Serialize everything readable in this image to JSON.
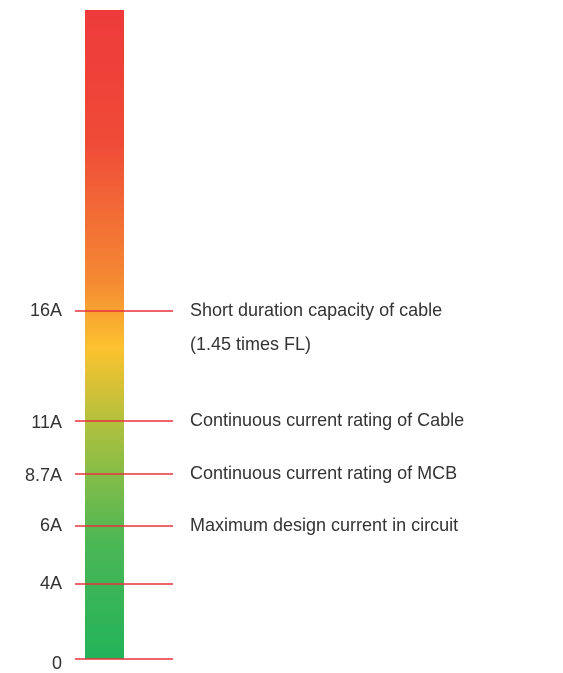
{
  "levels": [
    {
      "label": "16A",
      "description": [
        "Short duration capacity of cable",
        "(1.45 times FL)"
      ]
    },
    {
      "label": "11A",
      "description": [
        "Continuous current rating of Cable"
      ]
    },
    {
      "label": "8.7A",
      "description": [
        "Continuous current rating of MCB"
      ]
    },
    {
      "label": "6A",
      "description": [
        "Maximum design current in circuit"
      ]
    },
    {
      "label": "4A",
      "description": []
    },
    {
      "label": "0",
      "description": []
    }
  ]
}
